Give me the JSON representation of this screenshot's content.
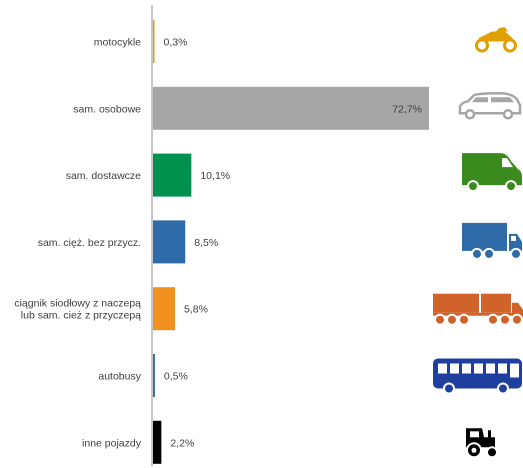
{
  "chart_data": {
    "type": "bar",
    "orientation": "horizontal",
    "categories": [
      [
        "motocykle"
      ],
      [
        "sam. osobowe"
      ],
      [
        "sam. dostawcze"
      ],
      [
        "sam. cięż. bez przycz."
      ],
      [
        "ciągnik siodłowy z naczepą",
        "lub sam. cież z przyczepą"
      ],
      [
        "autobusy"
      ],
      [
        "inne pojazdy"
      ]
    ],
    "values": [
      0.3,
      72.7,
      10.1,
      8.5,
      5.8,
      0.5,
      2.2
    ],
    "value_labels": [
      "0,3%",
      "72,7%",
      "10,1%",
      "8,5%",
      "5,8%",
      "0,5%",
      "2,2%"
    ],
    "colors": [
      "#e0a100",
      "#a6a6a6",
      "#00914f",
      "#2e6ba8",
      "#f0901e",
      "#2e6ba8",
      "#000000"
    ],
    "icons": [
      "motorcycle-icon",
      "car-icon",
      "van-icon",
      "truck-icon",
      "semi-truck-icon",
      "bus-icon",
      "tractor-icon"
    ],
    "icon_colors": [
      "#e0a100",
      "#a6a6a6",
      "#3a8a1e",
      "#2e6ba8",
      "#d0622a",
      "#1f3f9e",
      "#000000"
    ],
    "xlim": [
      0,
      72.7
    ],
    "grid": false,
    "title": "",
    "xlabel": "",
    "ylabel": ""
  }
}
